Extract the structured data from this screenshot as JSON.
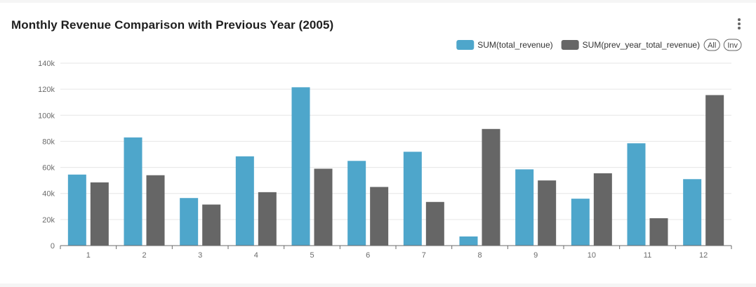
{
  "header": {
    "title": "Monthly Revenue Comparison with Previous Year (2005)",
    "menu_icon": "vertical-dots-icon"
  },
  "legend": {
    "buttons": {
      "all": "All",
      "inv": "Inv"
    }
  },
  "colors": {
    "series1": "#4ea6cb",
    "series2": "#666666",
    "grid": "#e6e6e6",
    "axis": "#6b6b6b"
  },
  "chart_data": {
    "type": "bar",
    "title": "Monthly Revenue Comparison with Previous Year (2005)",
    "xlabel": "",
    "ylabel": "",
    "categories": [
      "1",
      "2",
      "3",
      "4",
      "5",
      "6",
      "7",
      "8",
      "9",
      "10",
      "11",
      "12"
    ],
    "ylim": [
      0,
      140000
    ],
    "yticks": [
      0,
      20000,
      40000,
      60000,
      80000,
      100000,
      120000,
      140000
    ],
    "ytick_labels": [
      "0",
      "20k",
      "40k",
      "60k",
      "80k",
      "100k",
      "120k",
      "140k"
    ],
    "grid": true,
    "legend_position": "top-right",
    "series": [
      {
        "name": "SUM(total_revenue)",
        "values": [
          54500,
          83000,
          36500,
          68500,
          121500,
          65000,
          72000,
          7000,
          58500,
          36000,
          78500,
          51000
        ]
      },
      {
        "name": "SUM(prev_year_total_revenue)",
        "values": [
          48500,
          54000,
          31500,
          41000,
          59000,
          45000,
          33500,
          89500,
          50000,
          55500,
          21000,
          115500
        ]
      }
    ]
  }
}
